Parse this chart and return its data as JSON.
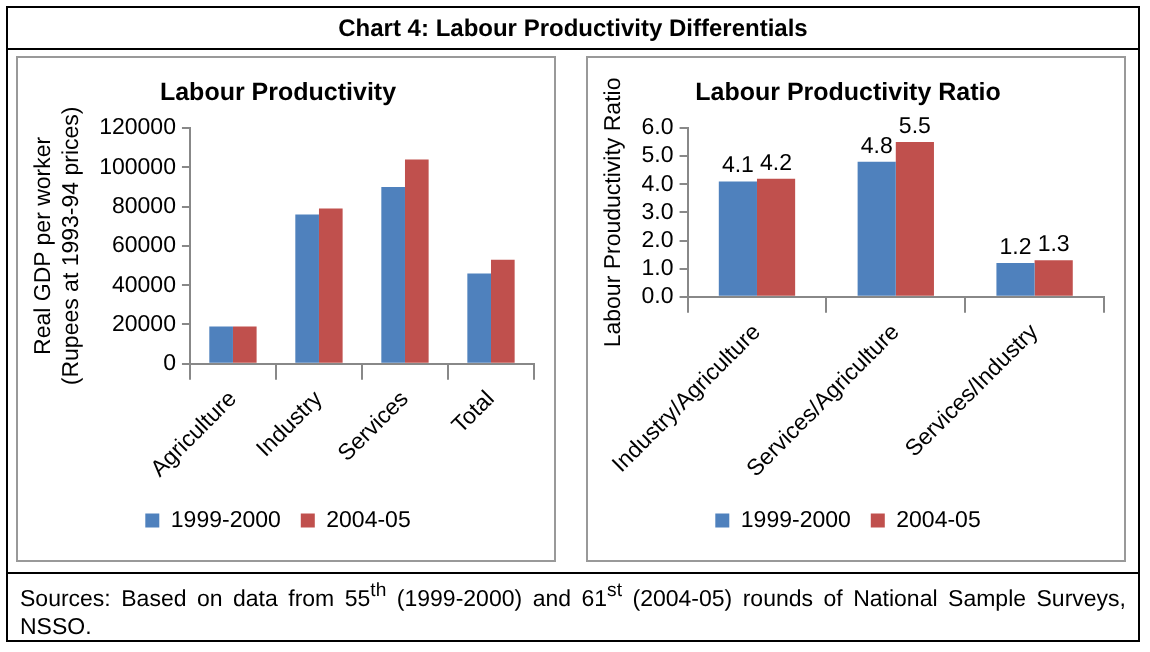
{
  "chart_data": [
    {
      "type": "other",
      "title": "Chart 4: Labour Productivity Differentials",
      "annotations": [
        "Sources: Based on data from 55$^{th}$ (1999-2000) and 61$^{st}$ (2004-05) rounds of National Sample Surveys, NSSO."
      ]
    },
    {
      "type": "bar",
      "title": "Labour Productivity",
      "ylabel": "Real GDP per worker (Rupees at 1993-94 prices)",
      "categories": [
        "Agriculture",
        "Industry",
        "Services",
        "Total"
      ],
      "series": [
        {
          "name": "1999-2000",
          "color": "#4f81bd",
          "values": [
            19000,
            76000,
            90000,
            46000
          ]
        },
        {
          "name": "2004-05",
          "color": "#c0504d",
          "values": [
            19000,
            79000,
            104000,
            53000
          ]
        }
      ],
      "ylim": [
        0,
        120000
      ],
      "yticks": [
        0,
        20000,
        40000,
        60000,
        80000,
        100000,
        120000
      ],
      "legend": "bottom"
    },
    {
      "type": "bar",
      "title": "Labour Productivity Ratio",
      "ylabel": "Labour Prouductivity Ratio",
      "categories": [
        "Industry/Agriculture",
        "Services/Agriculture",
        "Services/Industry"
      ],
      "series": [
        {
          "name": "1999-2000",
          "color": "#4f81bd",
          "values": [
            4.1,
            4.8,
            1.2
          ]
        },
        {
          "name": "2004-05",
          "color": "#c0504d",
          "values": [
            4.2,
            5.5,
            1.3
          ]
        }
      ],
      "ylim": [
        0,
        6
      ],
      "yticks": [
        {
          "value": 0,
          "label": "0.0"
        },
        {
          "value": 1,
          "label": "1.0"
        },
        {
          "value": 2,
          "label": "2.0"
        },
        {
          "value": 3,
          "label": "3.0"
        },
        {
          "value": 4,
          "label": "4.0"
        },
        {
          "value": 5,
          "label": "5.0"
        },
        {
          "value": 6,
          "label": "6.0"
        }
      ],
      "legend": "bottom",
      "data_labels": true
    }
  ]
}
